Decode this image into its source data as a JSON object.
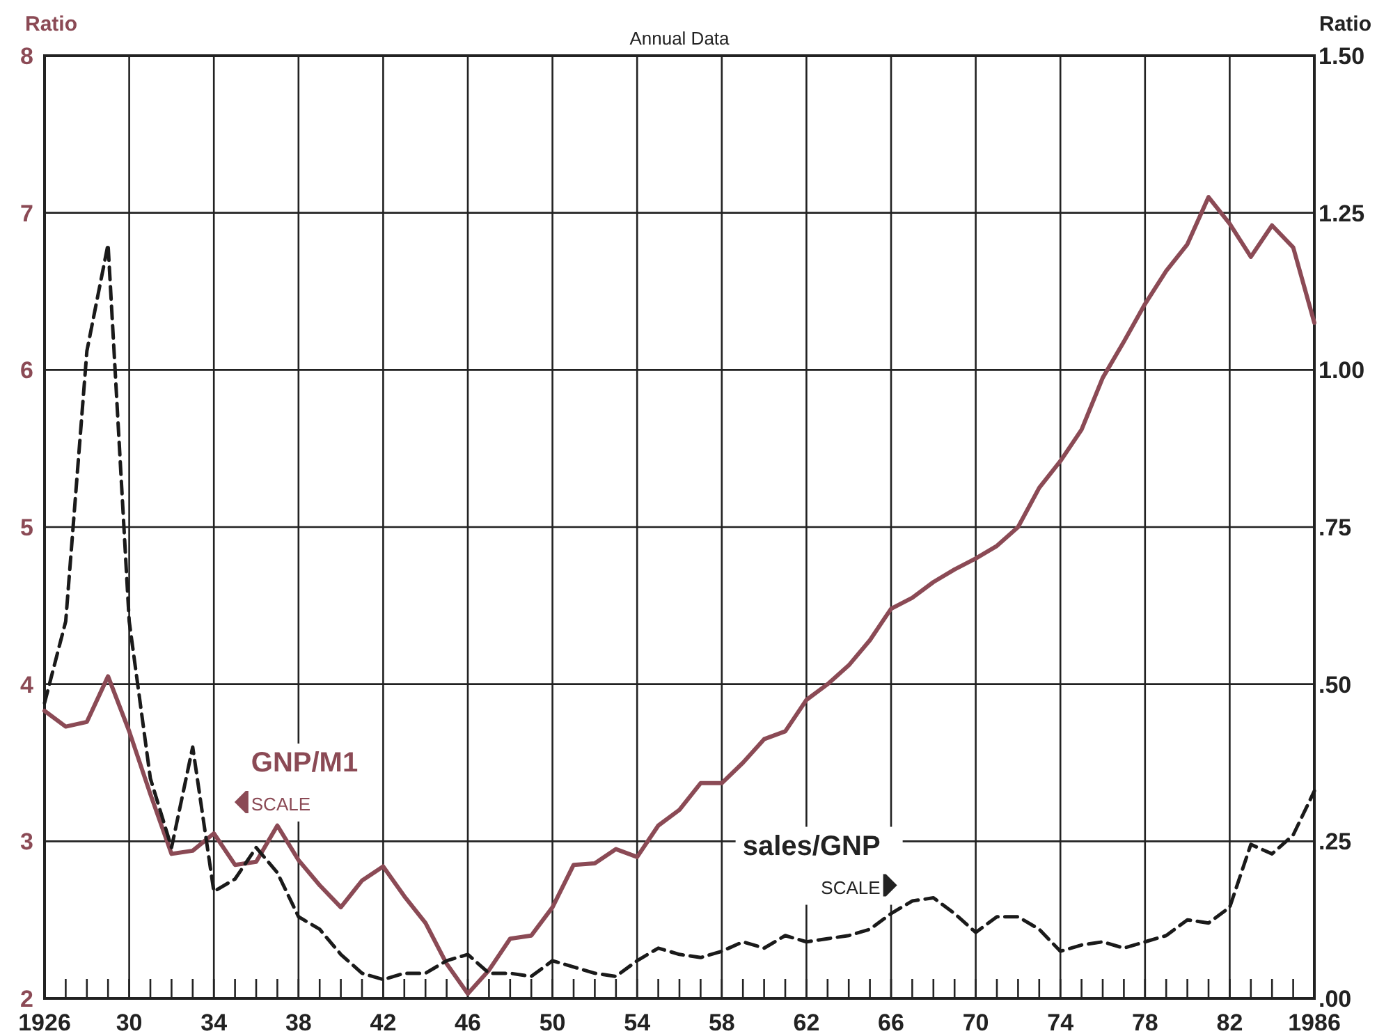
{
  "chart_data": {
    "type": "line",
    "title": "Annual Data",
    "ylabel": "Ratio",
    "y2label": "Ratio",
    "x": [
      1926,
      1927,
      1928,
      1929,
      1930,
      1931,
      1932,
      1933,
      1934,
      1935,
      1936,
      1937,
      1938,
      1939,
      1940,
      1941,
      1942,
      1943,
      1944,
      1945,
      1946,
      1947,
      1948,
      1949,
      1950,
      1951,
      1952,
      1953,
      1954,
      1955,
      1956,
      1957,
      1958,
      1959,
      1960,
      1961,
      1962,
      1963,
      1964,
      1965,
      1966,
      1967,
      1968,
      1969,
      1970,
      1971,
      1972,
      1973,
      1974,
      1975,
      1976,
      1977,
      1978,
      1979,
      1980,
      1981,
      1982,
      1983,
      1984,
      1985,
      1986
    ],
    "series": [
      {
        "name": "GNP/M1",
        "color": "#8b4a55",
        "line_style": "solid",
        "axis": "y",
        "values": [
          3.83,
          3.73,
          3.76,
          4.05,
          3.7,
          3.3,
          2.92,
          2.94,
          3.05,
          2.85,
          2.87,
          3.1,
          2.88,
          2.72,
          2.58,
          2.75,
          2.84,
          2.65,
          2.48,
          2.22,
          2.03,
          2.18,
          2.38,
          2.4,
          2.58,
          2.85,
          2.86,
          2.95,
          2.9,
          3.1,
          3.2,
          3.37,
          3.37,
          3.5,
          3.65,
          3.7,
          3.9,
          4.0,
          4.12,
          4.28,
          4.48,
          4.55,
          4.65,
          4.73,
          4.8,
          4.88,
          5.0,
          5.25,
          5.42,
          5.62,
          5.95,
          6.18,
          6.42,
          6.63,
          6.8,
          7.1,
          6.93,
          6.72,
          6.92,
          6.78,
          6.3
        ]
      },
      {
        "name": "sales/GNP",
        "color": "#1a1a1a",
        "line_style": "dashed",
        "axis": "y2",
        "values": [
          0.47,
          0.6,
          1.03,
          1.2,
          0.6,
          0.35,
          0.24,
          0.4,
          0.17,
          0.19,
          0.24,
          0.2,
          0.13,
          0.11,
          0.07,
          0.04,
          0.03,
          0.04,
          0.04,
          0.06,
          0.07,
          0.04,
          0.04,
          0.035,
          0.06,
          0.05,
          0.04,
          0.035,
          0.06,
          0.08,
          0.07,
          0.065,
          0.075,
          0.09,
          0.08,
          0.1,
          0.09,
          0.095,
          0.1,
          0.11,
          0.135,
          0.155,
          0.16,
          0.135,
          0.105,
          0.13,
          0.13,
          0.11,
          0.075,
          0.085,
          0.09,
          0.08,
          0.09,
          0.1,
          0.125,
          0.12,
          0.145,
          0.245,
          0.23,
          0.26,
          0.33
        ]
      }
    ],
    "xlim": [
      1926,
      1986
    ],
    "xticks": [
      {
        "value": 1926,
        "label": "1926"
      },
      {
        "value": 1927,
        "label": null
      },
      {
        "value": 1928,
        "label": null
      },
      {
        "value": 1929,
        "label": null
      },
      {
        "value": 1930,
        "label": "30"
      },
      {
        "value": 1931,
        "label": null
      },
      {
        "value": 1932,
        "label": null
      },
      {
        "value": 1933,
        "label": null
      },
      {
        "value": 1934,
        "label": "34"
      },
      {
        "value": 1935,
        "label": null
      },
      {
        "value": 1936,
        "label": null
      },
      {
        "value": 1937,
        "label": null
      },
      {
        "value": 1938,
        "label": "38"
      },
      {
        "value": 1939,
        "label": null
      },
      {
        "value": 1940,
        "label": null
      },
      {
        "value": 1941,
        "label": null
      },
      {
        "value": 1942,
        "label": "42"
      },
      {
        "value": 1943,
        "label": null
      },
      {
        "value": 1944,
        "label": null
      },
      {
        "value": 1945,
        "label": null
      },
      {
        "value": 1946,
        "label": "46"
      },
      {
        "value": 1947,
        "label": null
      },
      {
        "value": 1948,
        "label": null
      },
      {
        "value": 1949,
        "label": null
      },
      {
        "value": 1950,
        "label": "50"
      },
      {
        "value": 1951,
        "label": null
      },
      {
        "value": 1952,
        "label": null
      },
      {
        "value": 1953,
        "label": null
      },
      {
        "value": 1954,
        "label": "54"
      },
      {
        "value": 1955,
        "label": null
      },
      {
        "value": 1956,
        "label": null
      },
      {
        "value": 1957,
        "label": null
      },
      {
        "value": 1958,
        "label": "58"
      },
      {
        "value": 1959,
        "label": null
      },
      {
        "value": 1960,
        "label": null
      },
      {
        "value": 1961,
        "label": null
      },
      {
        "value": 1962,
        "label": "62"
      },
      {
        "value": 1963,
        "label": null
      },
      {
        "value": 1964,
        "label": null
      },
      {
        "value": 1965,
        "label": null
      },
      {
        "value": 1966,
        "label": "66"
      },
      {
        "value": 1967,
        "label": null
      },
      {
        "value": 1968,
        "label": null
      },
      {
        "value": 1969,
        "label": null
      },
      {
        "value": 1970,
        "label": "70"
      },
      {
        "value": 1971,
        "label": null
      },
      {
        "value": 1972,
        "label": null
      },
      {
        "value": 1973,
        "label": null
      },
      {
        "value": 1974,
        "label": "74"
      },
      {
        "value": 1975,
        "label": null
      },
      {
        "value": 1976,
        "label": null
      },
      {
        "value": 1977,
        "label": null
      },
      {
        "value": 1978,
        "label": "78"
      },
      {
        "value": 1979,
        "label": null
      },
      {
        "value": 1980,
        "label": null
      },
      {
        "value": 1981,
        "label": null
      },
      {
        "value": 1982,
        "label": "82"
      },
      {
        "value": 1983,
        "label": null
      },
      {
        "value": 1984,
        "label": null
      },
      {
        "value": 1985,
        "label": null
      },
      {
        "value": 1986,
        "label": "1986"
      }
    ],
    "ylim": [
      2,
      8
    ],
    "yticks": [
      2,
      3,
      4,
      5,
      6,
      7,
      8
    ],
    "y2lim": [
      0,
      1.5
    ],
    "y2ticks": [
      {
        "value": 0,
        "label": ".00"
      },
      {
        "value": 0.25,
        "label": ".25"
      },
      {
        "value": 0.5,
        "label": ".50"
      },
      {
        "value": 0.75,
        "label": ".75"
      },
      {
        "value": 1,
        "label": "1.00"
      },
      {
        "value": 1.25,
        "label": "1.25"
      },
      {
        "value": 1.5,
        "label": "1.50"
      }
    ],
    "annotations": [
      "SCALE",
      "SCALE"
    ],
    "grid": true
  }
}
